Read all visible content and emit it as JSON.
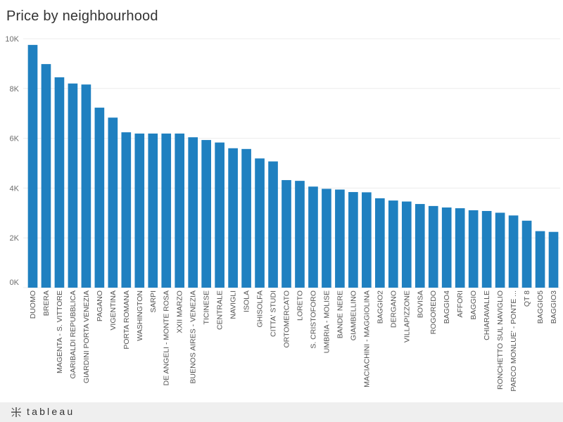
{
  "title": "Price by neighbourhood",
  "footer": {
    "brand": "tableau"
  },
  "colors": {
    "bar": "#1f80c0",
    "grid": "#ececec"
  },
  "chart_data": {
    "type": "bar",
    "title": "Price by neighbourhood",
    "xlabel": "",
    "ylabel": "",
    "ylim": [
      0,
      10000
    ],
    "yticks": [
      {
        "value": 0,
        "label": "0K"
      },
      {
        "value": 2000,
        "label": "2K"
      },
      {
        "value": 4000,
        "label": "4K"
      },
      {
        "value": 6000,
        "label": "6K"
      },
      {
        "value": 8000,
        "label": "8K"
      },
      {
        "value": 10000,
        "label": "10K"
      }
    ],
    "grid": true,
    "categories": [
      "DUOMO",
      "BRERA",
      "MAGENTA - S. VITTORE",
      "GARIBALDI REPUBBLICA",
      "GIARDINI PORTA VENEZIA",
      "PAGANO",
      "VIGENTINA",
      "PORTA ROMANA",
      "WASHINGTON",
      "SARPI",
      "DE ANGELI - MONTE ROSA",
      "XXII MARZO",
      "BUENOS AIRES - VENEZIA",
      "TICINESE",
      "CENTRALE",
      "NAVIGLI",
      "ISOLA",
      "GHISOLFA",
      "CITTA' STUDI",
      "ORTOMERCATO",
      "LORETO",
      "S. CRISTOFORO",
      "UMBRIA - MOLISE",
      "BANDE NERE",
      "GIAMBELLINO",
      "MACIACHINI - MAGGIOLINA",
      "BAGGIO2",
      "DERGANO",
      "VILLAPIZZONE",
      "BOVISA",
      "ROGOREDO",
      "BAGGIO4",
      "AFFORI",
      "BAGGIO",
      "CHIARAVALLE",
      "RONCHETTO SUL NAVIGLIO",
      "PARCO MONLUE' - PONTE ...",
      "QT 8",
      "BAGGIO5",
      "BAGGIO3"
    ],
    "values": [
      9750,
      8980,
      8450,
      8200,
      8160,
      7230,
      6830,
      6240,
      6190,
      6190,
      6190,
      6190,
      6040,
      5930,
      5830,
      5600,
      5570,
      5190,
      5070,
      4320,
      4290,
      4060,
      3970,
      3940,
      3840,
      3830,
      3590,
      3500,
      3460,
      3360,
      3280,
      3220,
      3190,
      3110,
      3080,
      3010,
      2900,
      2690,
      2270,
      2240
    ]
  }
}
